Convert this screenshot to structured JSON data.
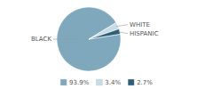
{
  "chart_data": {
    "type": "pie",
    "categories": [
      "BLACK",
      "WHITE",
      "HISPANIC"
    ],
    "values": [
      93.9,
      3.4,
      2.7
    ],
    "value_labels": [
      "93.9%",
      "3.4%",
      "2.7%"
    ],
    "colors": [
      "#7fa8bc",
      "#c8dce8",
      "#2e5f7a"
    ],
    "legend": "bottom"
  }
}
